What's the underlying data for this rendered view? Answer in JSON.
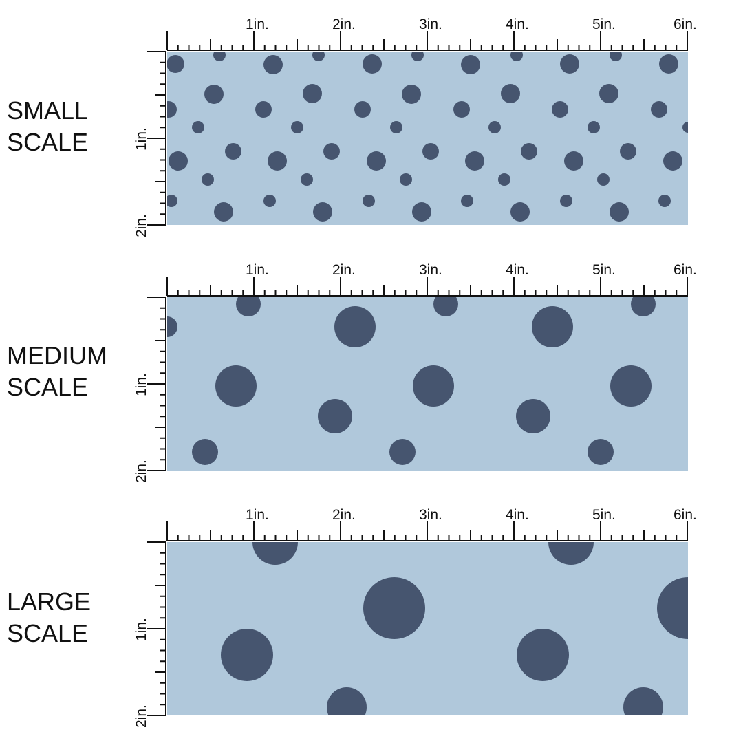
{
  "colors": {
    "fabric_background": "#b0c8db",
    "dot": "#46556f",
    "ruler": "#111111",
    "page": "#ffffff"
  },
  "ruler": {
    "top_labels": [
      "1in.",
      "2in.",
      "3in.",
      "4in.",
      "5in.",
      "6in."
    ],
    "side_labels": [
      "1in.",
      "2in."
    ]
  },
  "sections": [
    {
      "id": "small",
      "label_line1": "SMALL",
      "label_line2": "SCALE",
      "pattern_name": "polka-dot-navy-on-light-blue"
    },
    {
      "id": "medium",
      "label_line1": "MEDIUM",
      "label_line2": "SCALE",
      "pattern_name": "polka-dot-navy-on-light-blue"
    },
    {
      "id": "large",
      "label_line1": "LARGE",
      "label_line2": "SCALE",
      "pattern_name": "polka-dot-navy-on-light-blue"
    }
  ]
}
